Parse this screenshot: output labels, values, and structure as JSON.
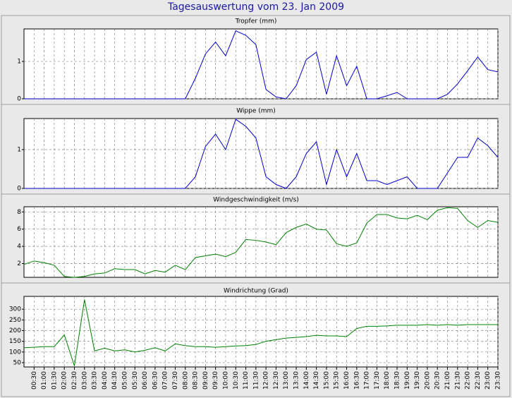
{
  "title": "Tagesauswertung vom 23. Jan 2009",
  "x": [
    null,
    "00:30",
    "01:00",
    "01:30",
    "02:00",
    "02:30",
    "03:00",
    "03:30",
    "04:00",
    "04:30",
    "05:00",
    "05:30",
    "06:00",
    "06:30",
    "07:00",
    "07:30",
    "08:00",
    "08:30",
    "09:00",
    "09:30",
    "10:00",
    "10:30",
    "11:00",
    "11:30",
    "12:00",
    "12:30",
    "13:00",
    "13:30",
    "14:00",
    "14:30",
    "15:00",
    "15:30",
    "16:00",
    "16:30",
    "17:00",
    "17:30",
    "18:00",
    "18:30",
    "19:00",
    "19:30",
    "20:00",
    "20:30",
    "21:00",
    "21:30",
    "22:00",
    "22:30",
    "23:00",
    "23:30"
  ],
  "chart_data": [
    {
      "type": "line",
      "title": "Tropfer (mm)",
      "color": "#0000cc",
      "ylim": [
        0,
        1.87
      ],
      "yticks": [
        0,
        1
      ],
      "grid": true,
      "values": [
        0,
        0,
        0,
        0,
        0,
        0,
        0,
        0,
        0,
        0,
        0,
        0,
        0,
        0,
        0,
        0,
        0,
        0.55,
        1.2,
        1.52,
        1.15,
        1.82,
        1.7,
        1.45,
        0.25,
        0.05,
        0,
        0.35,
        1.05,
        1.25,
        0.12,
        1.15,
        0.35,
        0.87,
        0,
        0,
        0.08,
        0.17,
        0,
        0,
        0,
        0,
        0.12,
        0.4,
        0.75,
        1.12,
        0.78,
        0.72
      ]
    },
    {
      "type": "line",
      "title": "Wippe (mm)",
      "color": "#0000cc",
      "ylim": [
        0,
        1.8
      ],
      "yticks": [
        0,
        1
      ],
      "grid": true,
      "values": [
        0,
        0,
        0,
        0,
        0,
        0,
        0,
        0,
        0,
        0,
        0,
        0,
        0,
        0,
        0,
        0,
        0,
        0.3,
        1.08,
        1.4,
        1.0,
        1.78,
        1.6,
        1.3,
        0.3,
        0.1,
        0,
        0.3,
        0.9,
        1.2,
        0.1,
        1.0,
        0.3,
        0.9,
        0.2,
        0.2,
        0.1,
        0.2,
        0.3,
        0,
        0,
        0,
        0.4,
        0.8,
        0.8,
        1.3,
        1.1,
        0.8
      ]
    },
    {
      "type": "line",
      "title": "Windgeschwindigkeit (m/s)",
      "color": "#008000",
      "ylim": [
        0.4,
        8.6
      ],
      "yticks": [
        2,
        4,
        6,
        8
      ],
      "grid": true,
      "values": [
        1.9,
        2.3,
        2.1,
        1.8,
        0.5,
        0.4,
        0.5,
        0.8,
        0.9,
        1.4,
        1.3,
        1.3,
        0.8,
        1.2,
        1.0,
        1.8,
        1.3,
        2.7,
        2.9,
        3.1,
        2.8,
        3.3,
        4.8,
        4.7,
        4.5,
        4.2,
        5.6,
        6.2,
        6.6,
        6.0,
        5.9,
        4.3,
        4.0,
        4.4,
        6.7,
        7.7,
        7.7,
        7.3,
        7.2,
        7.6,
        7.1,
        8.2,
        8.5,
        8.4,
        7.0,
        6.2,
        7.0,
        6.8
      ]
    },
    {
      "type": "line",
      "title": "Windrichtung (Grad)",
      "color": "#008000",
      "ylim": [
        30,
        360
      ],
      "yticks": [
        50,
        100,
        150,
        200,
        250,
        300
      ],
      "grid": true,
      "values": [
        120,
        122,
        125,
        125,
        180,
        35,
        345,
        105,
        118,
        105,
        110,
        100,
        108,
        120,
        105,
        138,
        130,
        125,
        125,
        122,
        125,
        128,
        130,
        135,
        150,
        158,
        165,
        168,
        172,
        178,
        175,
        175,
        172,
        210,
        220,
        220,
        222,
        225,
        225,
        225,
        228,
        225,
        228,
        225,
        228,
        228,
        228,
        228
      ]
    }
  ]
}
